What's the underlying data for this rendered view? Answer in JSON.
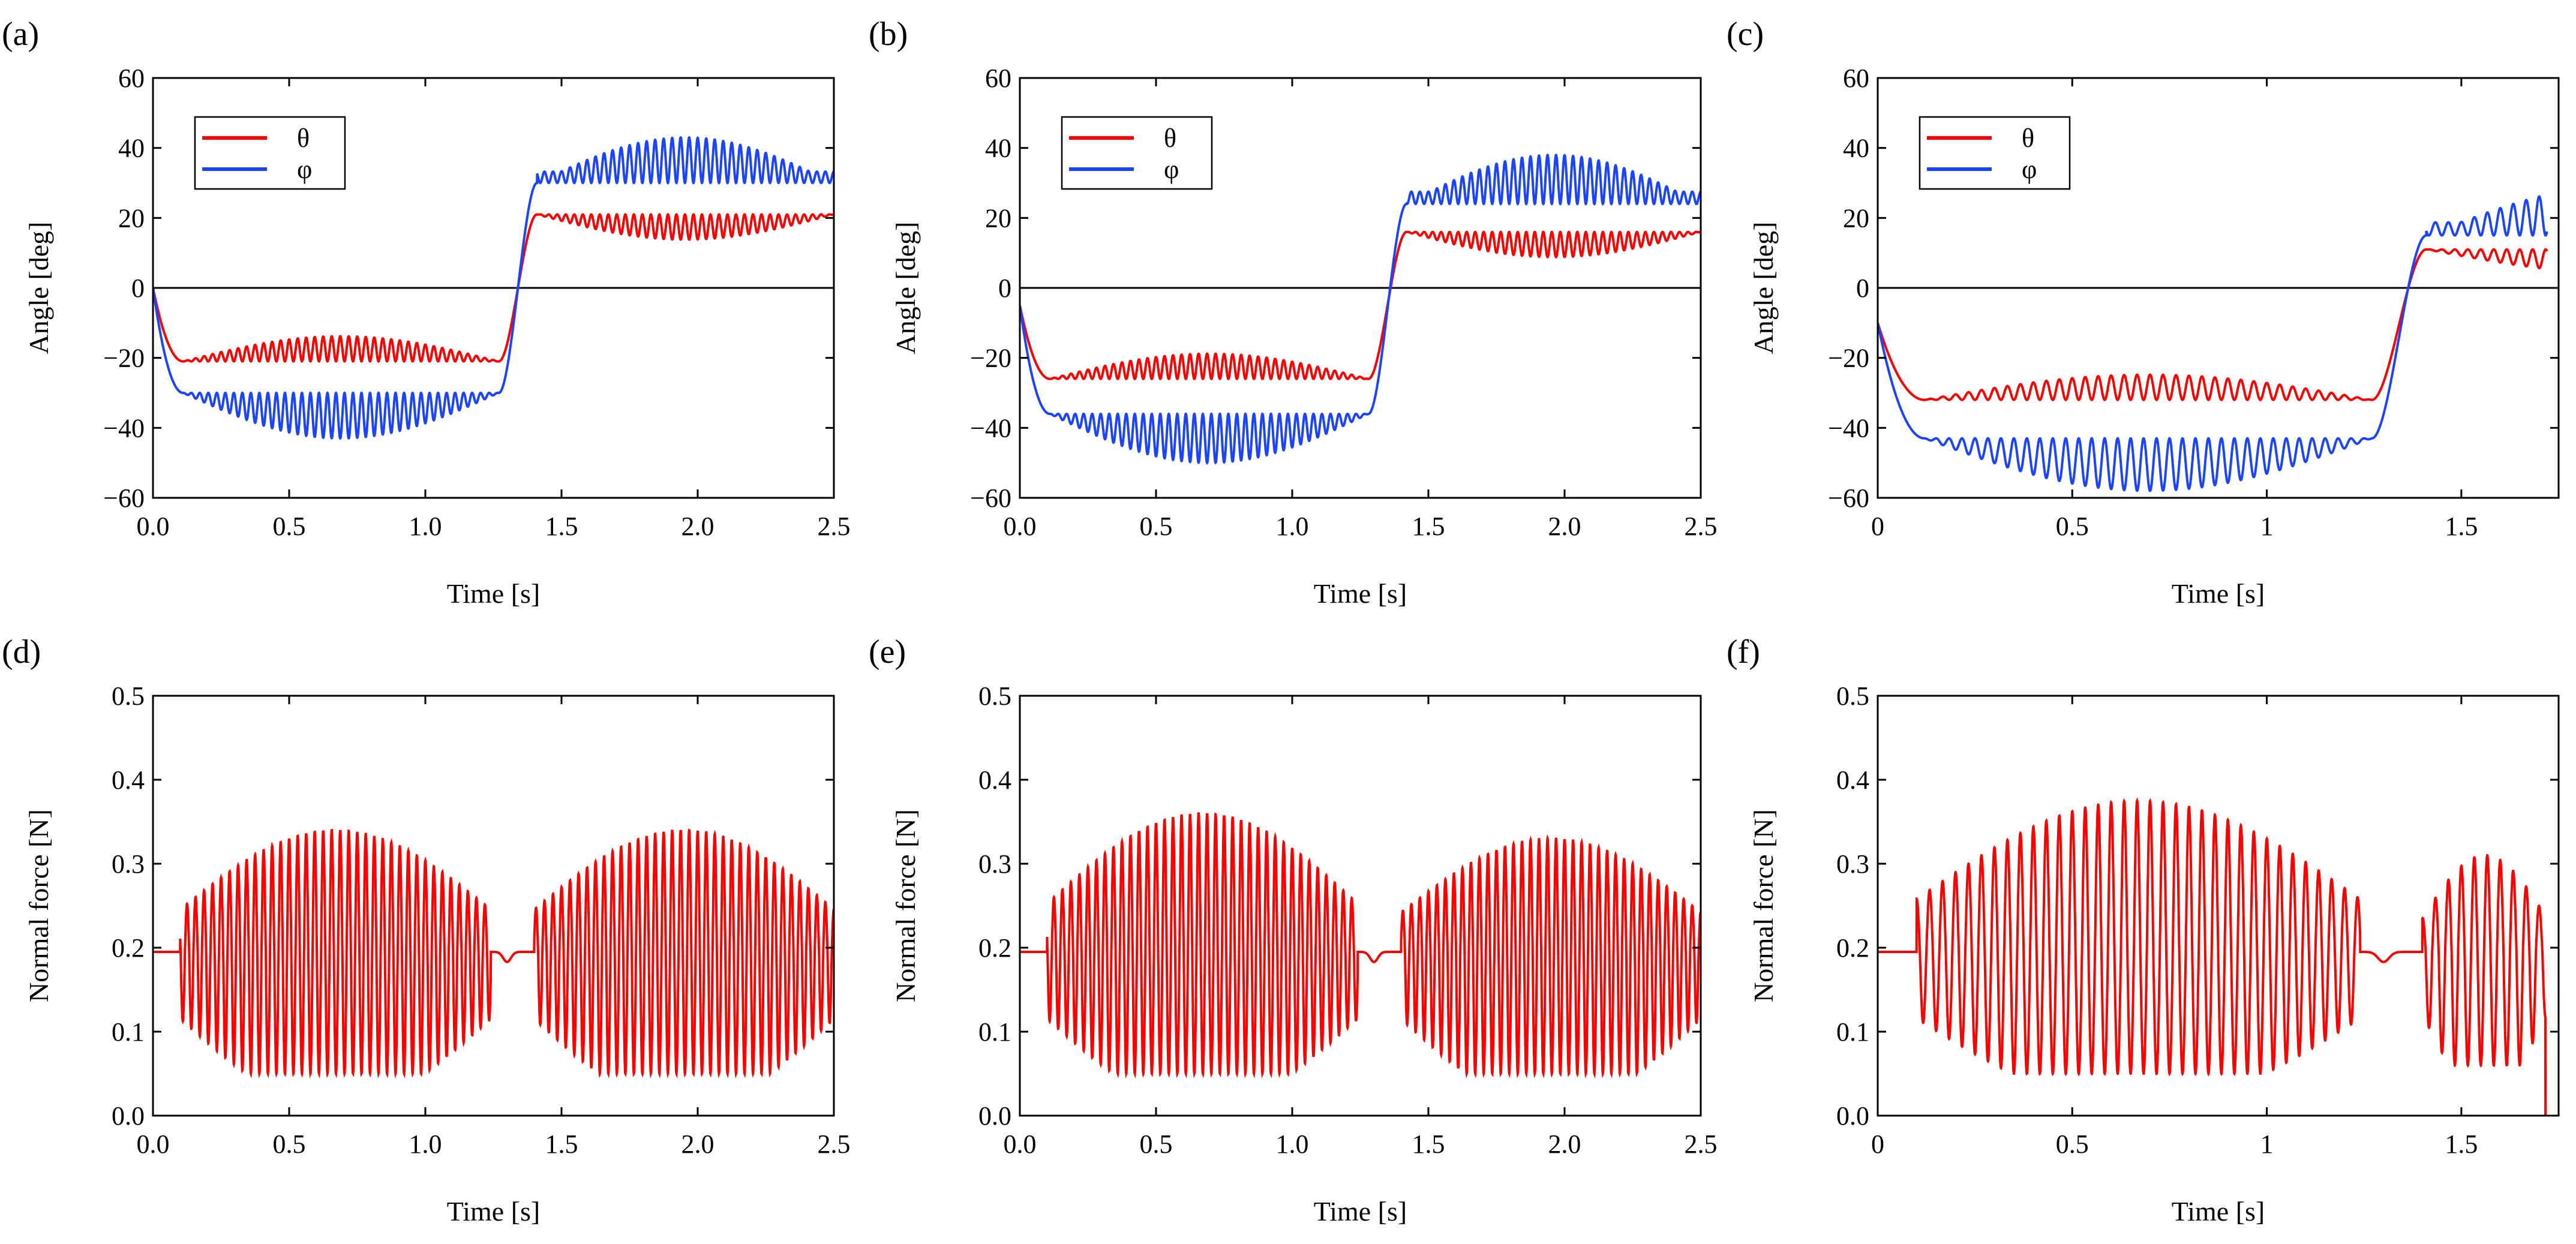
{
  "colors": {
    "theta": "#ff0000",
    "phi": "#1a44ff",
    "force": "#ff0000",
    "axis": "#000000"
  },
  "chart_data": [
    {
      "panel": "(a)",
      "type": "line",
      "xlabel": "Time [s]",
      "ylabel": "Angle [deg]",
      "xlim": [
        0,
        2.5
      ],
      "ylim": [
        -60,
        60
      ],
      "xticks": [
        0,
        0.5,
        1.0,
        1.5,
        2.0,
        2.5
      ],
      "xtick_labels": [
        "0.0",
        "0.5",
        "1.0",
        "1.5",
        "2.0",
        "2.5"
      ],
      "yticks": [
        -60,
        -40,
        -20,
        0,
        20,
        40,
        60
      ],
      "ytick_labels": [
        "−60",
        "−40",
        "−20",
        "0",
        "20",
        "40",
        "60"
      ],
      "zero_line": true,
      "legend": "top-left",
      "series": [
        {
          "name": "θ",
          "key": "theta",
          "start": 0,
          "transition": 1.37,
          "end": 2.5,
          "stance1": -21,
          "stance2": 21,
          "osc_amp": 8,
          "osc_freq": 32,
          "dip_time": 0.11
        },
        {
          "name": "φ",
          "key": "phi",
          "start": 0,
          "transition": 1.37,
          "end": 2.5,
          "stance1": -30,
          "stance2": 30,
          "osc_amp": 13,
          "osc_freq": 32,
          "dip_time": 0.11
        }
      ]
    },
    {
      "panel": "(b)",
      "type": "line",
      "xlabel": "Time [s]",
      "ylabel": "Angle [deg]",
      "xlim": [
        0,
        2.5
      ],
      "ylim": [
        -60,
        60
      ],
      "xticks": [
        0,
        0.5,
        1.0,
        1.5,
        2.0,
        2.5
      ],
      "xtick_labels": [
        "0.0",
        "0.5",
        "1.0",
        "1.5",
        "2.0",
        "2.5"
      ],
      "yticks": [
        -60,
        -40,
        -20,
        0,
        20,
        40,
        60
      ],
      "ytick_labels": [
        "−60",
        "−40",
        "−20",
        "0",
        "20",
        "40",
        "60"
      ],
      "zero_line": true,
      "legend": "top-left",
      "series": [
        {
          "name": "θ",
          "key": "theta",
          "start": -5,
          "transition": 1.38,
          "end": 2.5,
          "stance1": -26,
          "stance2": 16,
          "osc_amp": 8,
          "osc_freq": 32,
          "dip_time": 0.11
        },
        {
          "name": "φ",
          "key": "phi",
          "start": -5,
          "transition": 1.38,
          "end": 2.5,
          "stance1": -36,
          "stance2": 24,
          "osc_amp": 14,
          "osc_freq": 32,
          "dip_time": 0.11
        }
      ]
    },
    {
      "panel": "(c)",
      "type": "line",
      "xlabel": "Time [s]",
      "ylabel": "Angle [deg]",
      "xlim": [
        0,
        1.75
      ],
      "ylim": [
        -60,
        60
      ],
      "xticks": [
        0,
        0.5,
        1,
        1.5
      ],
      "xtick_labels": [
        "0",
        "0.5",
        "1",
        "1.5"
      ],
      "yticks": [
        -60,
        -40,
        -20,
        0,
        20,
        40,
        60
      ],
      "ytick_labels": [
        "−60",
        "−40",
        "−20",
        "0",
        "20",
        "40",
        "60"
      ],
      "zero_line": true,
      "legend": "top-left",
      "series": [
        {
          "name": "θ",
          "key": "theta",
          "start": -10,
          "transition": 1.37,
          "end": 1.72,
          "stance1": -32,
          "stance2": 11,
          "osc_amp": 8,
          "osc_freq": 30,
          "dip_time": 0.12
        },
        {
          "name": "φ",
          "key": "phi",
          "start": -10,
          "transition": 1.37,
          "end": 1.72,
          "stance1": -43,
          "stance2": 15,
          "osc_amp": 15,
          "osc_freq": 30,
          "dip_time": 0.12
        }
      ]
    },
    {
      "panel": "(d)",
      "type": "line",
      "xlabel": "Time [s]",
      "ylabel": "Normal force [N]",
      "xlim": [
        0,
        2.5
      ],
      "ylim": [
        0,
        0.5
      ],
      "xticks": [
        0,
        0.5,
        1.0,
        1.5,
        2.0,
        2.5
      ],
      "xtick_labels": [
        "0.0",
        "0.5",
        "1.0",
        "1.5",
        "2.0",
        "2.5"
      ],
      "yticks": [
        0,
        0.1,
        0.2,
        0.3,
        0.4,
        0.5
      ],
      "ytick_labels": [
        "0.0",
        "0.1",
        "0.2",
        "0.3",
        "0.4",
        "0.5"
      ],
      "zero_line": false,
      "series": [
        {
          "key": "force",
          "end": 2.5,
          "base": 0.195,
          "envelopes": [
            [
              0.1,
              1.24,
              0.34,
              0.05
            ],
            [
              1.4,
              2.5,
              0.34,
              0.05
            ]
          ],
          "freq": 32
        }
      ]
    },
    {
      "panel": "(e)",
      "type": "line",
      "xlabel": "Time [s]",
      "ylabel": "Normal force [N]",
      "xlim": [
        0,
        2.5
      ],
      "ylim": [
        0,
        0.5
      ],
      "xticks": [
        0,
        0.5,
        1.0,
        1.5,
        2.0,
        2.5
      ],
      "xtick_labels": [
        "0.0",
        "0.5",
        "1.0",
        "1.5",
        "2.0",
        "2.5"
      ],
      "yticks": [
        0,
        0.1,
        0.2,
        0.3,
        0.4,
        0.5
      ],
      "ytick_labels": [
        "0.0",
        "0.1",
        "0.2",
        "0.3",
        "0.4",
        "0.5"
      ],
      "zero_line": false,
      "series": [
        {
          "key": "force",
          "end": 2.5,
          "base": 0.195,
          "envelopes": [
            [
              0.1,
              1.24,
              0.36,
              0.05
            ],
            [
              1.4,
              2.5,
              0.33,
              0.05
            ]
          ],
          "freq": 32
        }
      ]
    },
    {
      "panel": "(f)",
      "type": "line",
      "xlabel": "Time [s]",
      "ylabel": "Normal force [N]",
      "xlim": [
        0,
        1.75
      ],
      "ylim": [
        0,
        0.5
      ],
      "xticks": [
        0,
        0.5,
        1,
        1.5
      ],
      "xtick_labels": [
        "0",
        "0.5",
        "1",
        "1.5"
      ],
      "yticks": [
        0,
        0.1,
        0.2,
        0.3,
        0.4,
        0.5
      ],
      "ytick_labels": [
        "0.0",
        "0.1",
        "0.2",
        "0.3",
        "0.4",
        "0.5"
      ],
      "zero_line": false,
      "series": [
        {
          "key": "force",
          "end": 1.72,
          "base": 0.195,
          "envelopes": [
            [
              0.1,
              1.24,
              0.375,
              0.05
            ],
            [
              1.4,
              1.72,
              0.31,
              0.06
            ]
          ],
          "freq": 30,
          "final_drop": 0.0
        }
      ]
    }
  ]
}
